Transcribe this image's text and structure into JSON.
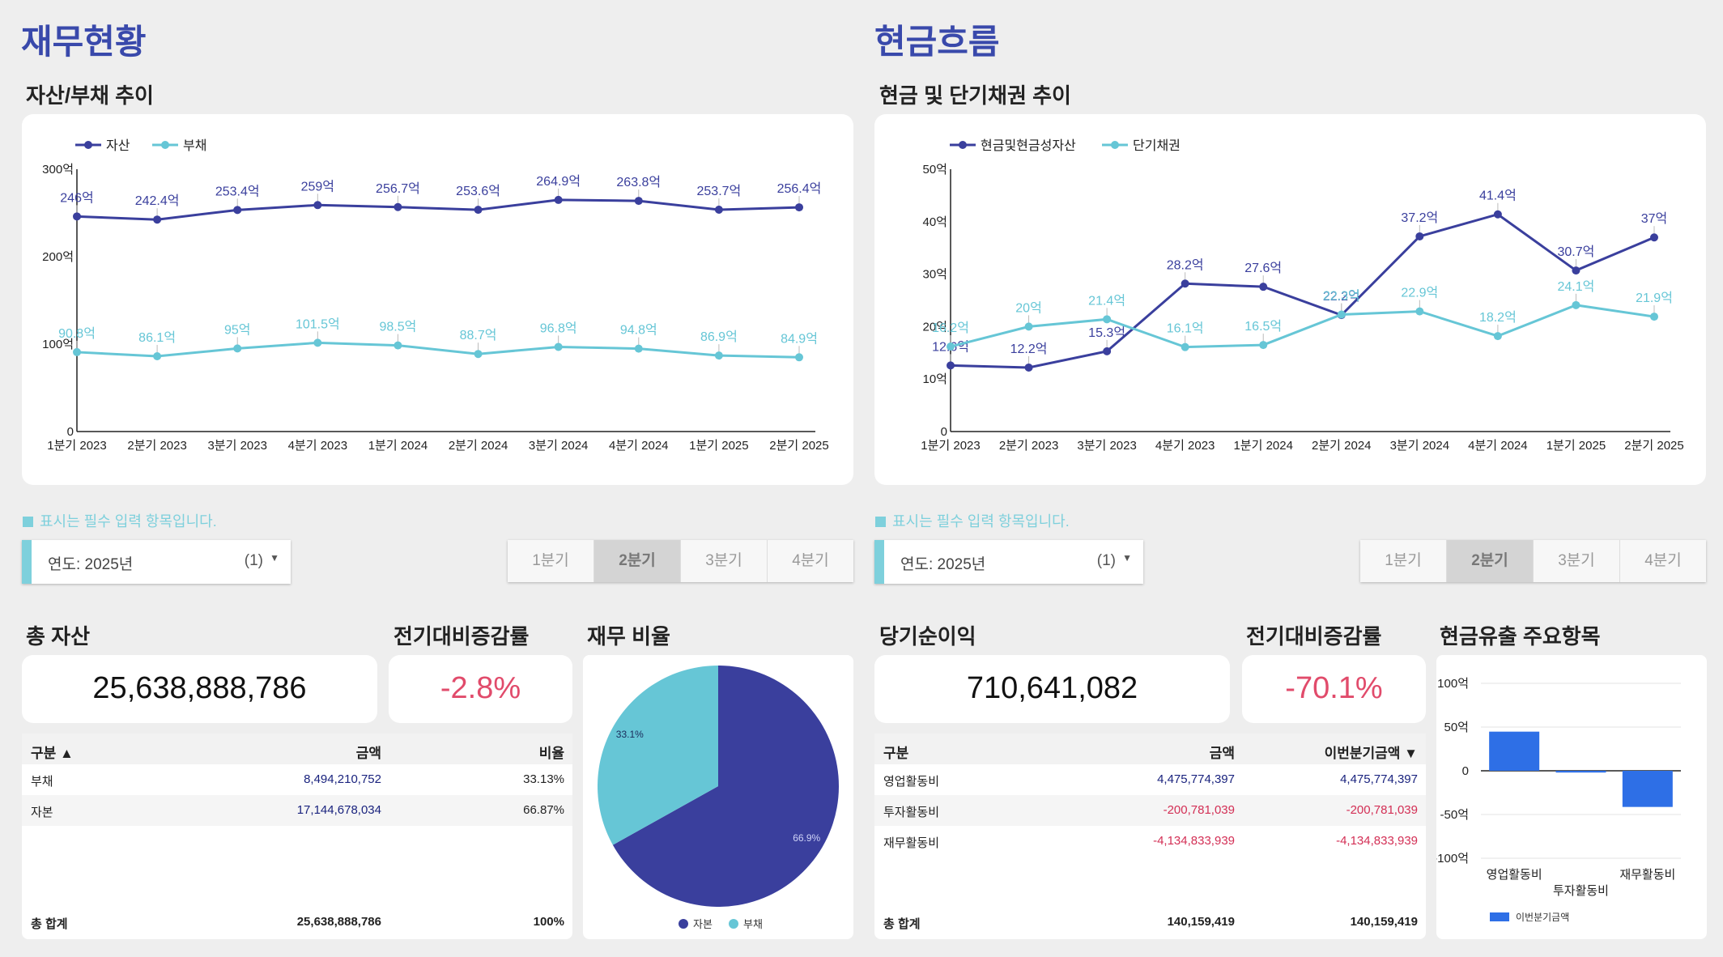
{
  "left": {
    "title": "재무현황",
    "chart_title": "자산/부채 추이",
    "note": "표시는 필수 입력 항목입니다.",
    "year_label": "연도: 2025년",
    "year_count": "(1)",
    "quarters": [
      "1분기",
      "2분기",
      "3분기",
      "4분기"
    ],
    "selected_quarter": "2분기",
    "total_title": "총 자산",
    "total_value": "25,638,888,786",
    "change_title": "전기대비증감률",
    "change_value": "-2.8%",
    "ratio_title": "재무 비율",
    "table": {
      "headers": [
        "구분 ▲",
        "금액",
        "비율"
      ],
      "rows": [
        {
          "name": "부채",
          "amount": "8,494,210,752",
          "ratio": "33.13%"
        },
        {
          "name": "자본",
          "amount": "17,144,678,034",
          "ratio": "66.87%"
        }
      ],
      "total": {
        "name": "총 합계",
        "amount": "25,638,888,786",
        "ratio": "100%"
      }
    }
  },
  "right": {
    "title": "현금흐름",
    "chart_title": "현금 및 단기채권 추이",
    "note": "표시는 필수 입력 항목입니다.",
    "year_label": "연도: 2025년",
    "year_count": "(1)",
    "quarters": [
      "1분기",
      "2분기",
      "3분기",
      "4분기"
    ],
    "selected_quarter": "2분기",
    "total_title": "당기순이익",
    "total_value": "710,641,082",
    "change_title": "전기대비증감률",
    "change_value": "-70.1%",
    "outflow_title": "현금유출 주요항목",
    "table": {
      "headers": [
        "구분",
        "금액",
        "이번분기금액 ▼"
      ],
      "rows": [
        {
          "name": "영업활동비",
          "amount": "4,475,774,397",
          "current": "4,475,774,397"
        },
        {
          "name": "투자활동비",
          "amount": "-200,781,039",
          "current": "-200,781,039"
        },
        {
          "name": "재무활동비",
          "amount": "-4,134,833,939",
          "current": "-4,134,833,939"
        }
      ],
      "total": {
        "name": "총 합계",
        "amount": "140,159,419",
        "current": "140,159,419"
      }
    }
  },
  "colors": {
    "navy": "#3a3f9d",
    "teal": "#66c6d6",
    "bar": "#2e6fe6",
    "title": "#3949ab",
    "red": "#e14b6b"
  },
  "chart_data": [
    {
      "type": "line",
      "categories": [
        "1분기 2023",
        "2분기 2023",
        "3분기 2023",
        "4분기 2023",
        "1분기 2024",
        "2분기 2024",
        "3분기 2024",
        "4분기 2024",
        "1분기 2025",
        "2분기 2025"
      ],
      "series": [
        {
          "name": "자산",
          "values": [
            246,
            242.4,
            253.4,
            259,
            256.7,
            253.6,
            264.9,
            263.8,
            253.7,
            256.4
          ],
          "labels": [
            "246억",
            "242.4억",
            "253.4억",
            "259억",
            "256.7억",
            "253.6억",
            "264.9억",
            "263.8억",
            "253.7억",
            "256.4억"
          ]
        },
        {
          "name": "부채",
          "values": [
            90.8,
            86.1,
            95,
            101.5,
            98.5,
            88.7,
            96.8,
            94.8,
            86.9,
            84.9
          ],
          "labels": [
            "90.8억",
            "86.1억",
            "95억",
            "101.5억",
            "98.5억",
            "88.7억",
            "96.8억",
            "94.8억",
            "86.9억",
            "84.9억"
          ]
        }
      ],
      "yticks": [
        "0",
        "100억",
        "200억",
        "300억"
      ],
      "ylim": [
        0,
        300
      ],
      "legend": "top-left"
    },
    {
      "type": "line",
      "categories": [
        "1분기 2023",
        "2분기 2023",
        "3분기 2023",
        "4분기 2023",
        "1분기 2024",
        "2분기 2024",
        "3분기 2024",
        "4분기 2024",
        "1분기 2025",
        "2분기 2025"
      ],
      "series": [
        {
          "name": "현금및현금성자산",
          "values": [
            12.6,
            12.2,
            15.3,
            28.2,
            27.6,
            22.2,
            37.2,
            41.4,
            30.7,
            37
          ],
          "labels": [
            "12.6억",
            "12.2억",
            "15.3억",
            "28.2억",
            "27.6억",
            "22.2억",
            "37.2억",
            "41.4억",
            "30.7억",
            "37억"
          ]
        },
        {
          "name": "단기채권",
          "values": [
            16.2,
            20,
            21.4,
            16.1,
            16.5,
            22.3,
            22.9,
            18.2,
            24.1,
            21.9
          ],
          "labels": [
            "16.2억",
            "20억",
            "21.4억",
            "16.1억",
            "16.5억",
            "22.3억",
            "22.9억",
            "18.2억",
            "24.1억",
            "21.9억"
          ]
        }
      ],
      "yticks": [
        "0",
        "10억",
        "20억",
        "30억",
        "40억",
        "50억"
      ],
      "ylim": [
        0,
        50
      ],
      "legend": "top-left"
    },
    {
      "type": "pie",
      "labels": [
        "자본",
        "부채"
      ],
      "values": [
        66.9,
        33.1
      ],
      "value_labels": [
        "66.9%",
        "33.1%"
      ],
      "legend": "bottom"
    },
    {
      "type": "bar",
      "categories": [
        "영업활동비",
        "투자활동비",
        "재무활동비"
      ],
      "series": [
        {
          "name": "이번분기금액",
          "values": [
            44.76,
            -2.01,
            -41.35
          ]
        }
      ],
      "yticks": [
        "100억",
        "50억",
        "0",
        "-50억",
        "-100억"
      ],
      "ylim": [
        -100,
        100
      ],
      "legend": "bottom-left"
    }
  ]
}
